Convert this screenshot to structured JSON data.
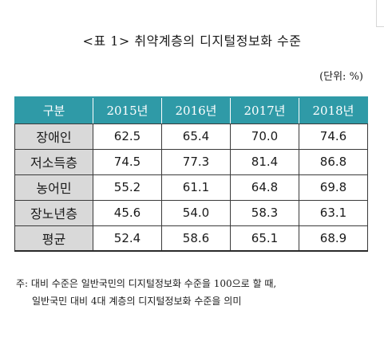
{
  "title": "<표 1> 취약계층의 디지털정보화 수준",
  "unit": "(단위: %)",
  "table": {
    "headers": [
      "구분",
      "2015년",
      "2016년",
      "2017년",
      "2018년"
    ],
    "rows": [
      {
        "label": "장애인",
        "values": [
          "62.5",
          "65.4",
          "70.0",
          "74.6"
        ]
      },
      {
        "label": "저소득층",
        "values": [
          "74.5",
          "77.3",
          "81.4",
          "86.8"
        ]
      },
      {
        "label": "농어민",
        "values": [
          "55.2",
          "61.1",
          "64.8",
          "69.8"
        ]
      },
      {
        "label": "장노년층",
        "values": [
          "45.6",
          "54.0",
          "58.3",
          "63.1"
        ]
      },
      {
        "label": "평균",
        "values": [
          "52.4",
          "58.6",
          "65.1",
          "68.9"
        ]
      }
    ]
  },
  "note": {
    "line1": "주: 대비 수준은 일반국민의 디지털정보화 수준을 100으로 할 때,",
    "line2": "일반국민 대비 4대 계층의 디지털정보화 수준을 의미"
  }
}
